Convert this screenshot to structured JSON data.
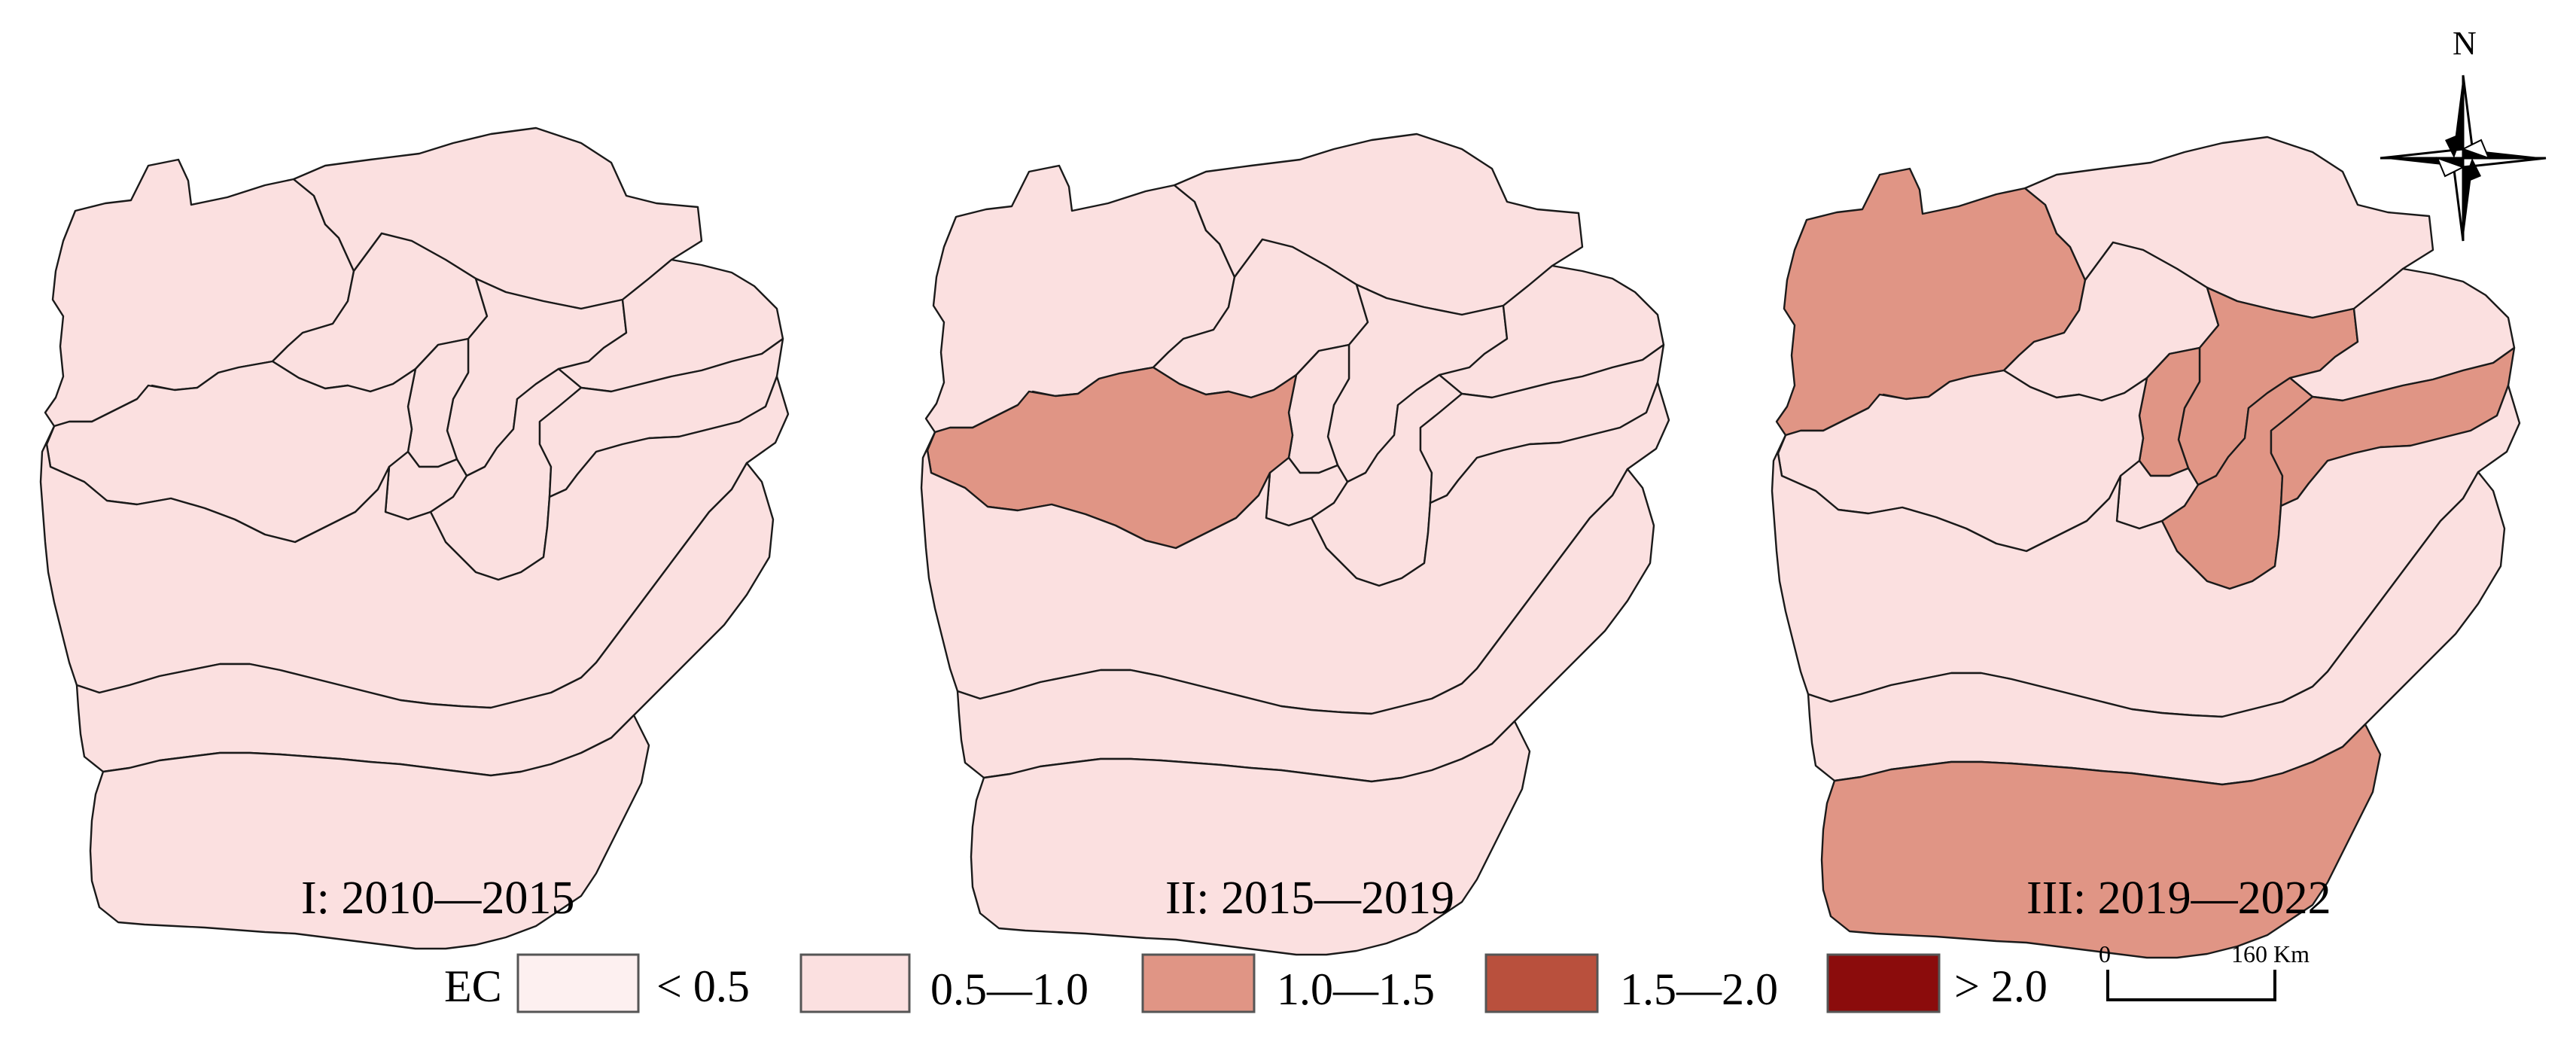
{
  "colors": {
    "lt_0_5": "#fdf0f0",
    "0_5_1_0": "#fbe0e0",
    "1_0_1_5": "#e09585",
    "1_5_2_0": "#b9503d",
    "gt_2_0": "#8b0c0c"
  },
  "panels": [
    {
      "label": "I: 2010—2015",
      "classes": [
        "0_5_1_0",
        "0_5_1_0",
        "0_5_1_0",
        "0_5_1_0",
        "0_5_1_0",
        "0_5_1_0",
        "0_5_1_0",
        "0_5_1_0",
        "0_5_1_0",
        "0_5_1_0",
        "0_5_1_0",
        "0_5_1_0",
        "0_5_1_0"
      ]
    },
    {
      "label": "II: 2015—2019",
      "classes": [
        "0_5_1_0",
        "0_5_1_0",
        "0_5_1_0",
        "0_5_1_0",
        "0_5_1_0",
        "0_5_1_0",
        "1_0_1_5",
        "0_5_1_0",
        "0_5_1_0",
        "0_5_1_0",
        "0_5_1_0",
        "0_5_1_0",
        "0_5_1_0"
      ]
    },
    {
      "label": "III: 2019—2022",
      "classes": [
        "1_0_1_5",
        "0_5_1_0",
        "0_5_1_0",
        "1_0_1_5",
        "0_5_1_0",
        "1_0_1_5",
        "0_5_1_0",
        "0_5_1_0",
        "1_0_1_5",
        "1_0_1_5",
        "0_5_1_0",
        "0_5_1_0",
        "1_0_1_5"
      ]
    }
  ],
  "legend": {
    "title": "EC",
    "items": [
      {
        "label": "< 0.5",
        "key": "lt_0_5"
      },
      {
        "label": "0.5—1.0",
        "key": "0_5_1_0"
      },
      {
        "label": "1.0—1.5",
        "key": "1_0_1_5"
      },
      {
        "label": "1.5—2.0",
        "key": "1_5_2_0"
      },
      {
        "label": "> 2.0",
        "key": "gt_2_0"
      }
    ]
  },
  "scale_bar": {
    "start_label": "0",
    "end_label": "160 Km"
  },
  "north_arrow": {
    "label": "N"
  }
}
